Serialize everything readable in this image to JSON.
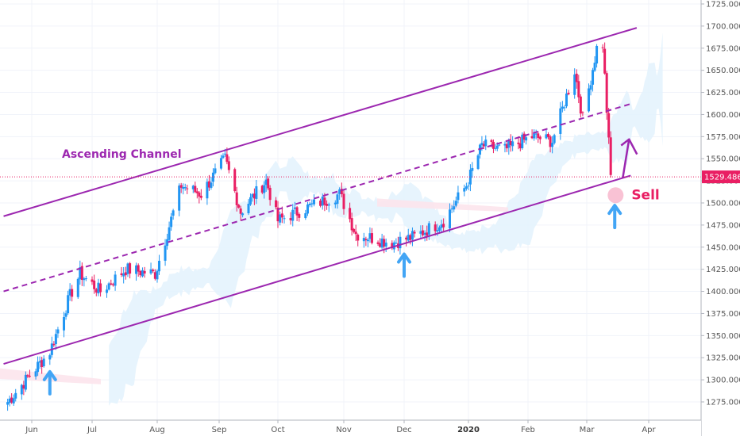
{
  "chart_data": {
    "type": "candlestick",
    "title": "",
    "xlabel": "",
    "ylabel": "",
    "yaxis_side": "right",
    "ylim": [
      1258,
      1728
    ],
    "y_ticks": [
      1275,
      1300,
      1325,
      1350,
      1375,
      1400,
      1425,
      1450,
      1475,
      1500,
      1525,
      1550,
      1575,
      1600,
      1625,
      1650,
      1675,
      1700,
      1725
    ],
    "y_tick_labels": [
      "1275.000",
      "1300.000",
      "1325.000",
      "1350.000",
      "1375.000",
      "1400.000",
      "1425.000",
      "1450.000",
      "1475.000",
      "1500.000",
      "1525.000",
      "1550.000",
      "1575.000",
      "1600.000",
      "1625.000",
      "1650.000",
      "1675.000",
      "1700.000",
      "1725.000"
    ],
    "x_ticks": [
      {
        "label": "Jun",
        "date": "2019-06-01",
        "bold": false
      },
      {
        "label": "Jul",
        "date": "2019-07-01",
        "bold": false
      },
      {
        "label": "Aug",
        "date": "2019-08-01",
        "bold": false
      },
      {
        "label": "Sep",
        "date": "2019-09-01",
        "bold": false
      },
      {
        "label": "Oct",
        "date": "2019-10-01",
        "bold": false
      },
      {
        "label": "Nov",
        "date": "2019-11-01",
        "bold": false
      },
      {
        "label": "Dec",
        "date": "2019-12-01",
        "bold": false
      },
      {
        "label": "2020",
        "date": "2020-01-01",
        "bold": true
      },
      {
        "label": "Feb",
        "date": "2020-02-01",
        "bold": false
      },
      {
        "label": "Mar",
        "date": "2020-03-01",
        "bold": false
      },
      {
        "label": "Apr",
        "date": "2020-04-01",
        "bold": false
      }
    ],
    "current_price": {
      "label": "1529.486",
      "value": 1529.486
    },
    "colors": {
      "up": "#2196f3",
      "down": "#e91e63",
      "channel": "#9c27b0",
      "arrow_blue": "#42a5f5",
      "cloud_blue": "#e3f2fd",
      "cloud_pink": "#fce4ec",
      "current_line": "#e91e63",
      "grid": "#f0f3fa",
      "axis_text": "#555555"
    },
    "key_points": [
      {
        "date": "2019-05-20",
        "close": 1275
      },
      {
        "date": "2019-05-31",
        "close": 1305
      },
      {
        "date": "2019-06-10",
        "close": 1332
      },
      {
        "date": "2019-06-20",
        "close": 1395
      },
      {
        "date": "2019-06-25",
        "close": 1420
      },
      {
        "date": "2019-07-05",
        "close": 1400
      },
      {
        "date": "2019-07-17",
        "close": 1425
      },
      {
        "date": "2019-07-31",
        "close": 1420
      },
      {
        "date": "2019-08-13",
        "close": 1520
      },
      {
        "date": "2019-08-23",
        "close": 1510
      },
      {
        "date": "2019-09-04",
        "close": 1550
      },
      {
        "date": "2019-09-12",
        "close": 1490
      },
      {
        "date": "2019-09-25",
        "close": 1525
      },
      {
        "date": "2019-10-01",
        "close": 1480
      },
      {
        "date": "2019-10-15",
        "close": 1495
      },
      {
        "date": "2019-10-30",
        "close": 1510
      },
      {
        "date": "2019-11-07",
        "close": 1465
      },
      {
        "date": "2019-11-25",
        "close": 1455
      },
      {
        "date": "2019-12-06",
        "close": 1462
      },
      {
        "date": "2019-12-20",
        "close": 1480
      },
      {
        "date": "2019-12-31",
        "close": 1520
      },
      {
        "date": "2020-01-08",
        "close": 1565
      },
      {
        "date": "2020-01-20",
        "close": 1560
      },
      {
        "date": "2020-02-03",
        "close": 1575
      },
      {
        "date": "2020-02-13",
        "close": 1570
      },
      {
        "date": "2020-02-24",
        "close": 1650
      },
      {
        "date": "2020-02-28",
        "close": 1595
      },
      {
        "date": "2020-03-06",
        "close": 1675
      },
      {
        "date": "2020-03-09",
        "close": 1680
      },
      {
        "date": "2020-03-13",
        "close": 1530
      }
    ],
    "channel": {
      "upper": [
        {
          "date": "2019-05-18",
          "price": 1485
        },
        {
          "date": "2020-03-26",
          "price": 1698
        }
      ],
      "middle": [
        {
          "date": "2019-05-18",
          "price": 1400
        },
        {
          "date": "2020-03-23",
          "price": 1612
        }
      ],
      "lower": [
        {
          "date": "2019-05-18",
          "price": 1318
        },
        {
          "date": "2020-03-23",
          "price": 1531
        }
      ]
    },
    "annotations": [
      {
        "type": "text",
        "text": "Ascending Channel",
        "date": "2019-06-16",
        "price": 1551,
        "color": "#9c27b0"
      },
      {
        "type": "text",
        "text": "Sell",
        "date": "2020-03-21",
        "price": 1515,
        "color": "#e91e63"
      },
      {
        "type": "arrow_up",
        "date": "2019-06-10",
        "price": 1302,
        "color": "#42a5f5"
      },
      {
        "type": "arrow_up",
        "date": "2019-12-01",
        "price": 1435,
        "color": "#42a5f5"
      },
      {
        "type": "arrow_up",
        "date": "2020-03-15",
        "price": 1490,
        "color": "#42a5f5"
      }
    ],
    "grid": true
  }
}
